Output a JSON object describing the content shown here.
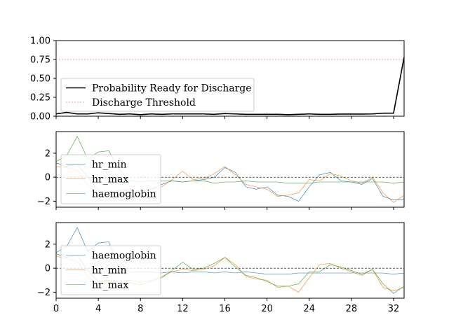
{
  "chart_data": [
    {
      "type": "line",
      "x": [
        0,
        1,
        2,
        3,
        4,
        5,
        6,
        7,
        8,
        9,
        10,
        11,
        12,
        13,
        14,
        15,
        16,
        17,
        18,
        19,
        20,
        21,
        22,
        23,
        24,
        25,
        26,
        27,
        28,
        29,
        30,
        31,
        32,
        33
      ],
      "ylim": [
        0,
        1
      ],
      "xlim": [
        0,
        33
      ],
      "yticks": [
        "0.00",
        "0.25",
        "0.50",
        "0.75",
        "1.00"
      ],
      "grid": false,
      "legend_position": "center-left",
      "series": [
        {
          "name": "Probability Ready for Discharge",
          "color": "#000000",
          "values": [
            0.03,
            0.05,
            0.03,
            0.03,
            0.045,
            0.035,
            0.025,
            0.03,
            0.02,
            0.03,
            0.025,
            0.03,
            0.03,
            0.03,
            0.03,
            0.025,
            0.035,
            0.03,
            0.025,
            0.025,
            0.025,
            0.025,
            0.02,
            0.025,
            0.03,
            0.025,
            0.025,
            0.028,
            0.028,
            0.028,
            0.03,
            0.04,
            0.04,
            0.78
          ]
        }
      ],
      "threshold": {
        "name": "Discharge Threshold",
        "value": 0.75,
        "color": "#f08080"
      }
    },
    {
      "type": "line",
      "x": [
        0,
        1,
        2,
        3,
        4,
        5,
        6,
        7,
        8,
        9,
        10,
        11,
        12,
        13,
        14,
        15,
        16,
        17,
        18,
        19,
        20,
        21,
        22,
        23,
        24,
        25,
        26,
        27,
        28,
        29,
        30,
        31,
        32,
        33
      ],
      "ylim": [
        -2.5,
        3.8
      ],
      "xlim": [
        0,
        33
      ],
      "yticks": [
        "−2",
        "0",
        "2"
      ],
      "grid": false,
      "legend_position": "lower-left",
      "reference_line": 0,
      "series": [
        {
          "name": "hr_min",
          "color": "#1f77b4",
          "values": [
            1.2,
            0.9,
            1.1,
            0.0,
            -1.1,
            -1.4,
            -1.5,
            -1.3,
            -1.2,
            -1.0,
            -0.6,
            -0.3,
            -0.4,
            -0.3,
            -0.2,
            0.0,
            0.8,
            0.4,
            -0.8,
            -1.0,
            -0.8,
            -1.5,
            -1.6,
            -2.0,
            -0.8,
            0.2,
            0.4,
            -0.3,
            -0.4,
            -0.6,
            -0.1,
            -1.6,
            -1.9,
            -1.9
          ]
        },
        {
          "name": "hr_max",
          "color": "#ff7f0e",
          "values": [
            0.9,
            0.8,
            0.6,
            -0.7,
            -1.4,
            -1.2,
            -1.1,
            -1.0,
            -1.2,
            -1.0,
            -0.8,
            -0.2,
            0.5,
            -0.2,
            -0.1,
            0.3,
            0.9,
            0.2,
            -0.6,
            -0.8,
            -1.0,
            -1.6,
            -1.5,
            -1.3,
            -0.2,
            -0.3,
            0.3,
            0.1,
            -0.3,
            -0.5,
            0.0,
            -1.3,
            -2.1,
            -1.5
          ]
        },
        {
          "name": "haemoglobin",
          "color": "#2ca02c",
          "values": [
            1.3,
            1.8,
            3.4,
            1.5,
            2.1,
            2.2,
            0.6,
            -0.3,
            -0.4,
            -0.3,
            -0.3,
            -0.3,
            -0.4,
            -0.3,
            -0.3,
            -0.5,
            -0.4,
            -0.4,
            -0.3,
            -0.4,
            -0.4,
            -0.4,
            -0.5,
            -0.5,
            -0.5,
            -0.4,
            -0.4,
            -0.4,
            -0.4,
            -0.4,
            -0.4,
            -0.4,
            -0.5,
            -0.4
          ]
        }
      ]
    },
    {
      "type": "line",
      "x": [
        0,
        1,
        2,
        3,
        4,
        5,
        6,
        7,
        8,
        9,
        10,
        11,
        12,
        13,
        14,
        15,
        16,
        17,
        18,
        19,
        20,
        21,
        22,
        23,
        24,
        25,
        26,
        27,
        28,
        29,
        30,
        31,
        32,
        33
      ],
      "ylim": [
        -2.5,
        3.8
      ],
      "xlim": [
        0,
        33
      ],
      "xticks": [
        "0",
        "4",
        "8",
        "12",
        "16",
        "20",
        "24",
        "28",
        "32"
      ],
      "yticks": [
        "−2",
        "0",
        "2"
      ],
      "grid": false,
      "legend_position": "lower-left",
      "reference_line": 0,
      "series": [
        {
          "name": "haemoglobin",
          "color": "#1f77b4",
          "values": [
            1.3,
            1.8,
            3.4,
            1.4,
            2.1,
            2.2,
            -0.1,
            -0.3,
            -0.3,
            -0.3,
            -0.4,
            -0.3,
            -0.4,
            -0.3,
            -0.3,
            -0.4,
            -0.3,
            -0.4,
            -0.3,
            -0.4,
            -0.5,
            -0.5,
            -0.5,
            -0.4,
            -0.4,
            -0.4,
            -0.4,
            -0.4,
            -0.4,
            -0.4,
            -0.4,
            -0.4,
            -0.5,
            -0.4
          ]
        },
        {
          "name": "hr_min",
          "color": "#ff7f0e",
          "values": [
            1.0,
            0.8,
            0.6,
            -0.7,
            -1.4,
            -1.2,
            -1.1,
            -1.0,
            -1.2,
            -1.0,
            -0.7,
            -0.3,
            -0.1,
            -0.2,
            -0.1,
            0.2,
            0.9,
            0.3,
            -0.7,
            -0.9,
            -1.0,
            -1.6,
            -1.5,
            -2.0,
            -0.8,
            0.3,
            0.4,
            0.0,
            -0.3,
            -0.6,
            -0.1,
            -1.6,
            -1.9,
            -1.6
          ]
        },
        {
          "name": "hr_max",
          "color": "#2ca02c",
          "values": [
            1.2,
            0.9,
            1.1,
            -0.2,
            -1.1,
            -1.0,
            -1.3,
            -1.2,
            -1.4,
            -1.1,
            -0.8,
            -0.2,
            0.5,
            -0.1,
            0.0,
            0.4,
            0.9,
            0.1,
            -0.6,
            -0.8,
            -1.1,
            -1.5,
            -1.5,
            -1.3,
            -0.3,
            -0.3,
            0.3,
            0.1,
            -0.2,
            -0.5,
            -0.1,
            -1.3,
            -2.1,
            -1.5
          ]
        }
      ]
    }
  ]
}
